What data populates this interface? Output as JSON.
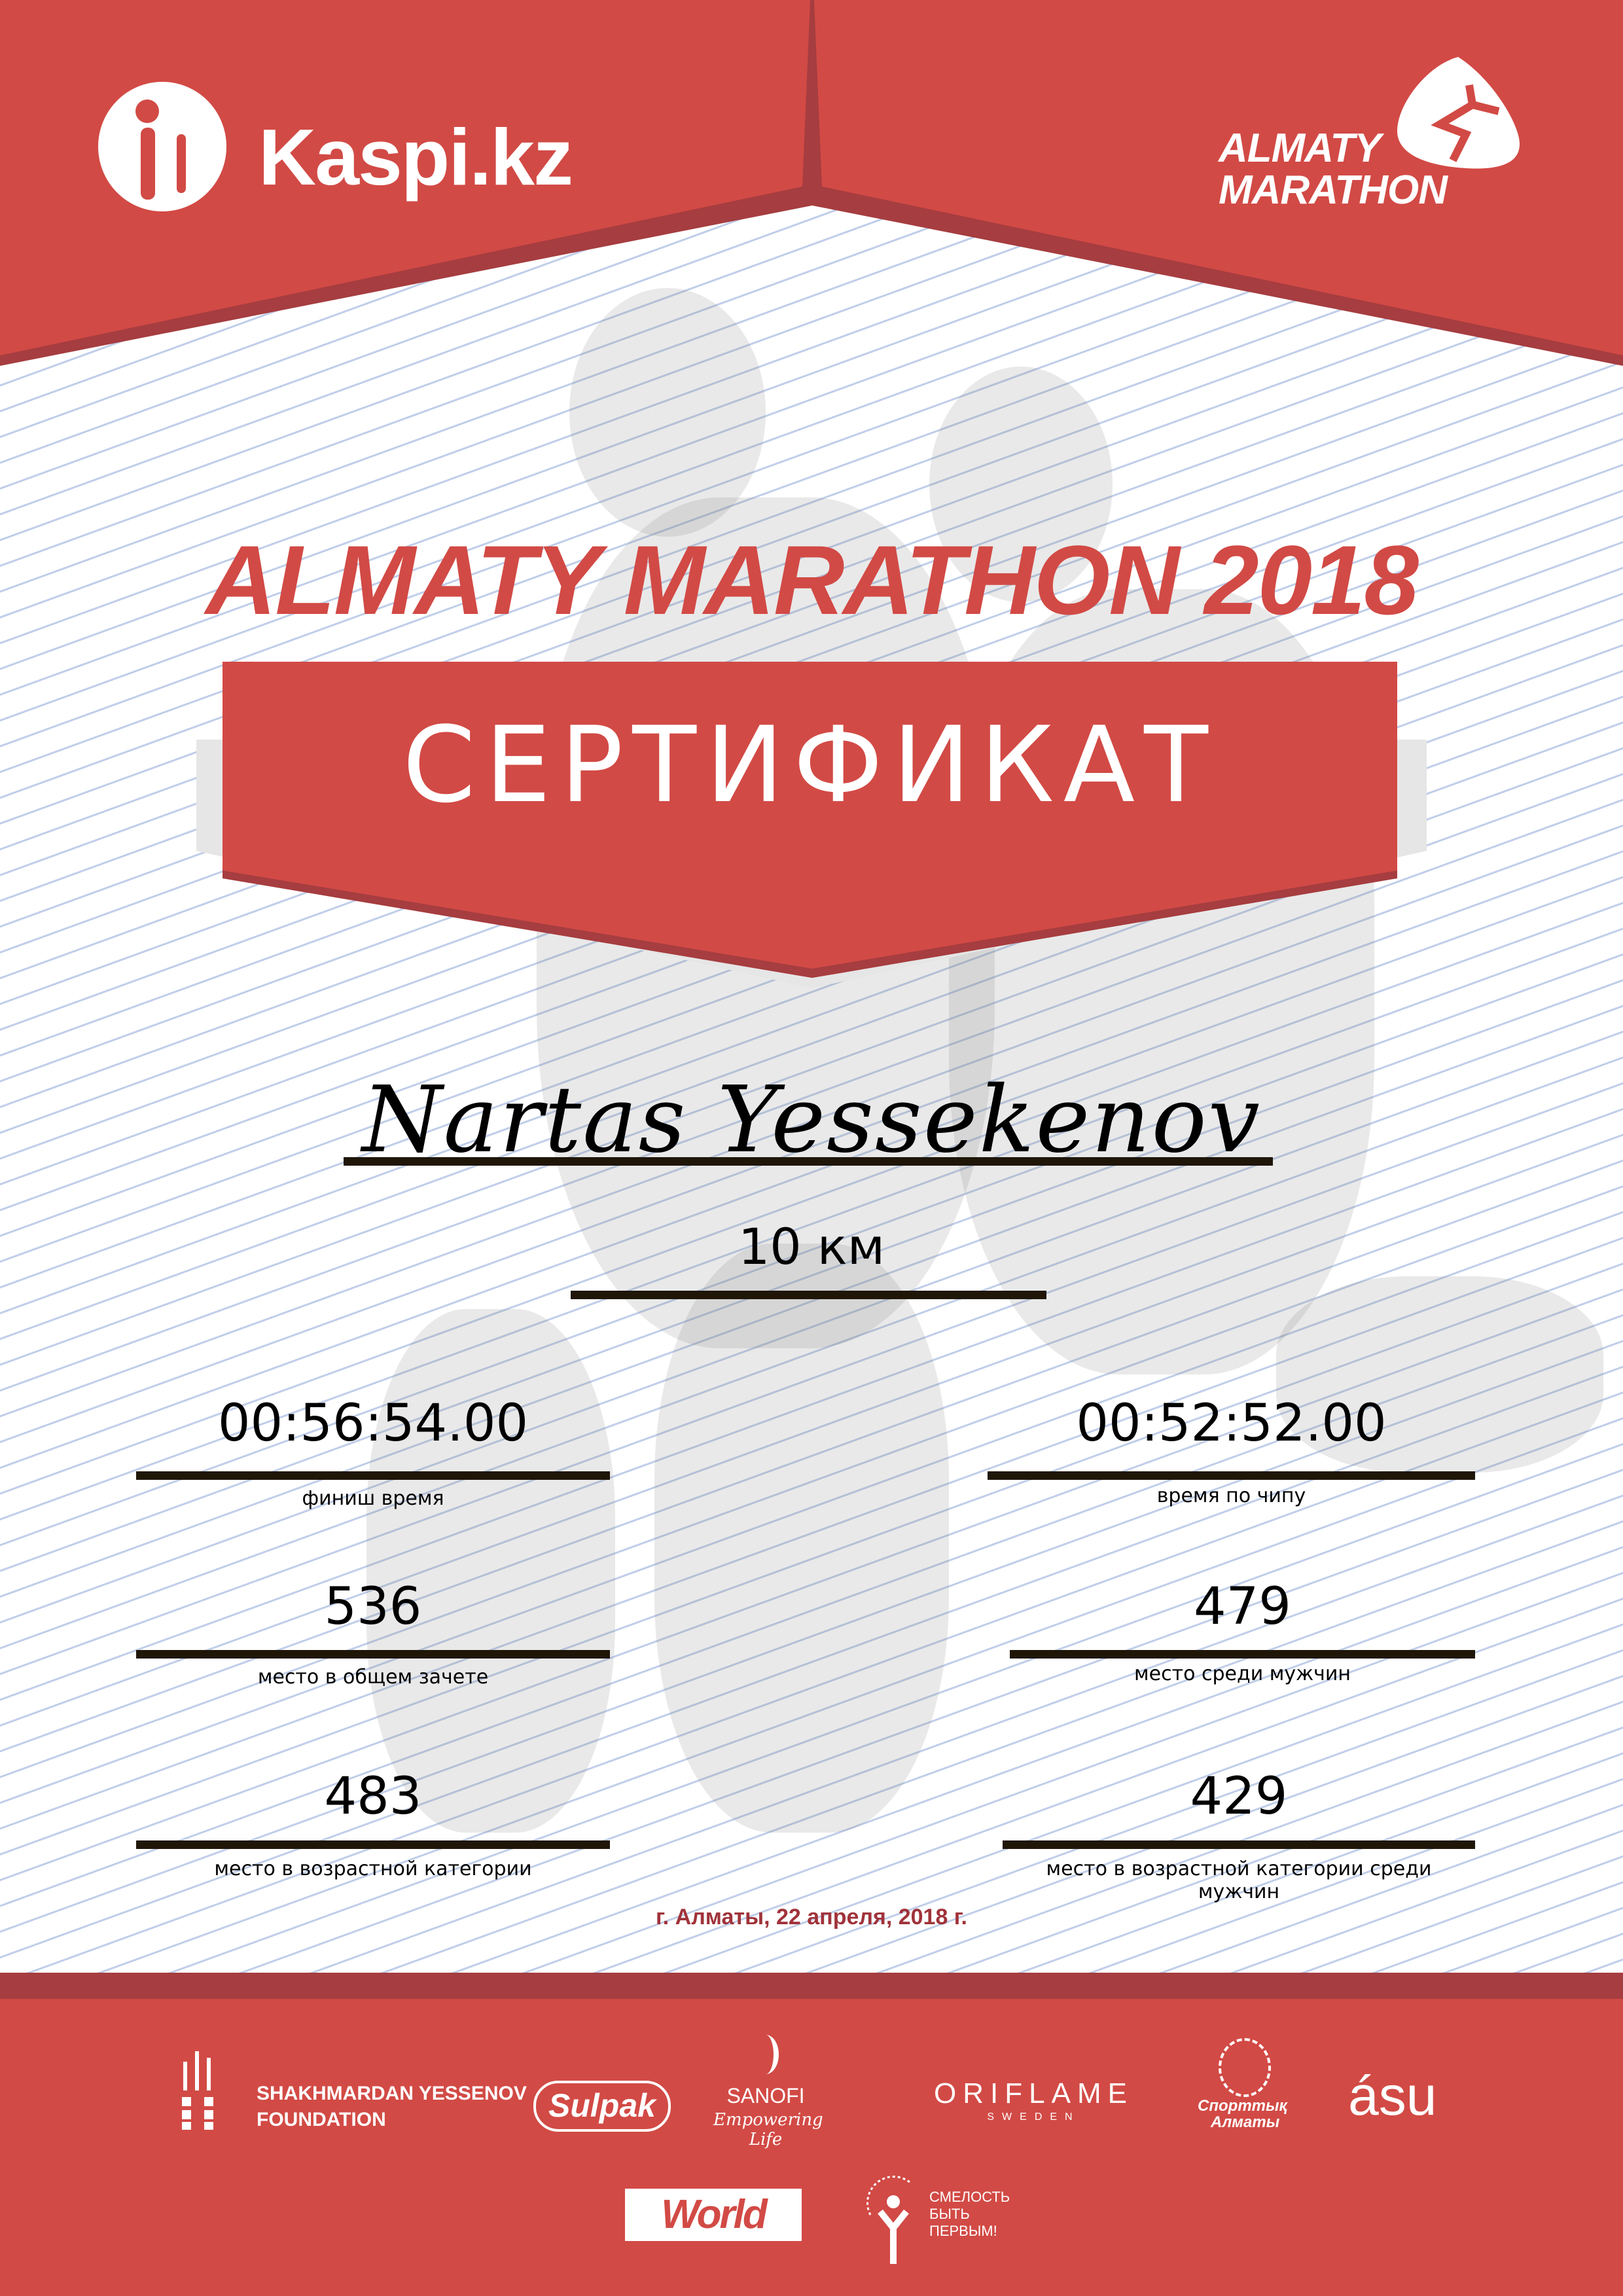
{
  "header": {
    "kaspi_logo": "Kaspi.kz",
    "event_logo_line1": "ALMATY",
    "event_logo_line2": "MARATHON"
  },
  "title": "ALMATY MARATHON 2018",
  "banner": "СЕРТИФИКАТ",
  "participant": {
    "name": "Nartas Yessekenov",
    "distance": "10 км"
  },
  "results": [
    {
      "value": "00:56:54.00",
      "label": "финиш время"
    },
    {
      "value": "00:52:52.00",
      "label": "время по чипу"
    },
    {
      "value": "536",
      "label": "место в общем зачете"
    },
    {
      "value": "479",
      "label": "место среди мужчин"
    },
    {
      "value": "483",
      "label": "место в возрастной категории"
    },
    {
      "value": "429",
      "label": "место в возрастной категории среди мужчин"
    }
  ],
  "date": "г. Алматы, 22 апреля, 2018 г.",
  "sponsors": {
    "yessenov_1": "SHAKHMARDAN YESSENOV",
    "yessenov_2": "FOUNDATION",
    "sulpak": "Sulpak",
    "sanofi": "SANOFI",
    "sanofi_tag": "Empowering Life",
    "oriflame": "ORIFLAME",
    "oriflame_sub": "SWEDEN",
    "sport_almaty_1": "Спорттық",
    "sport_almaty_2": "Алматы",
    "asu": "ásu",
    "worldclass": "World Class",
    "fund_1": "СМЕЛОСТЬ",
    "fund_2": "БЫТЬ",
    "fund_3": "ПЕРВЫМ!"
  },
  "colors": {
    "brand_red": "#d24a45",
    "dark_red": "#a63d40",
    "date_red": "#a0333a"
  }
}
